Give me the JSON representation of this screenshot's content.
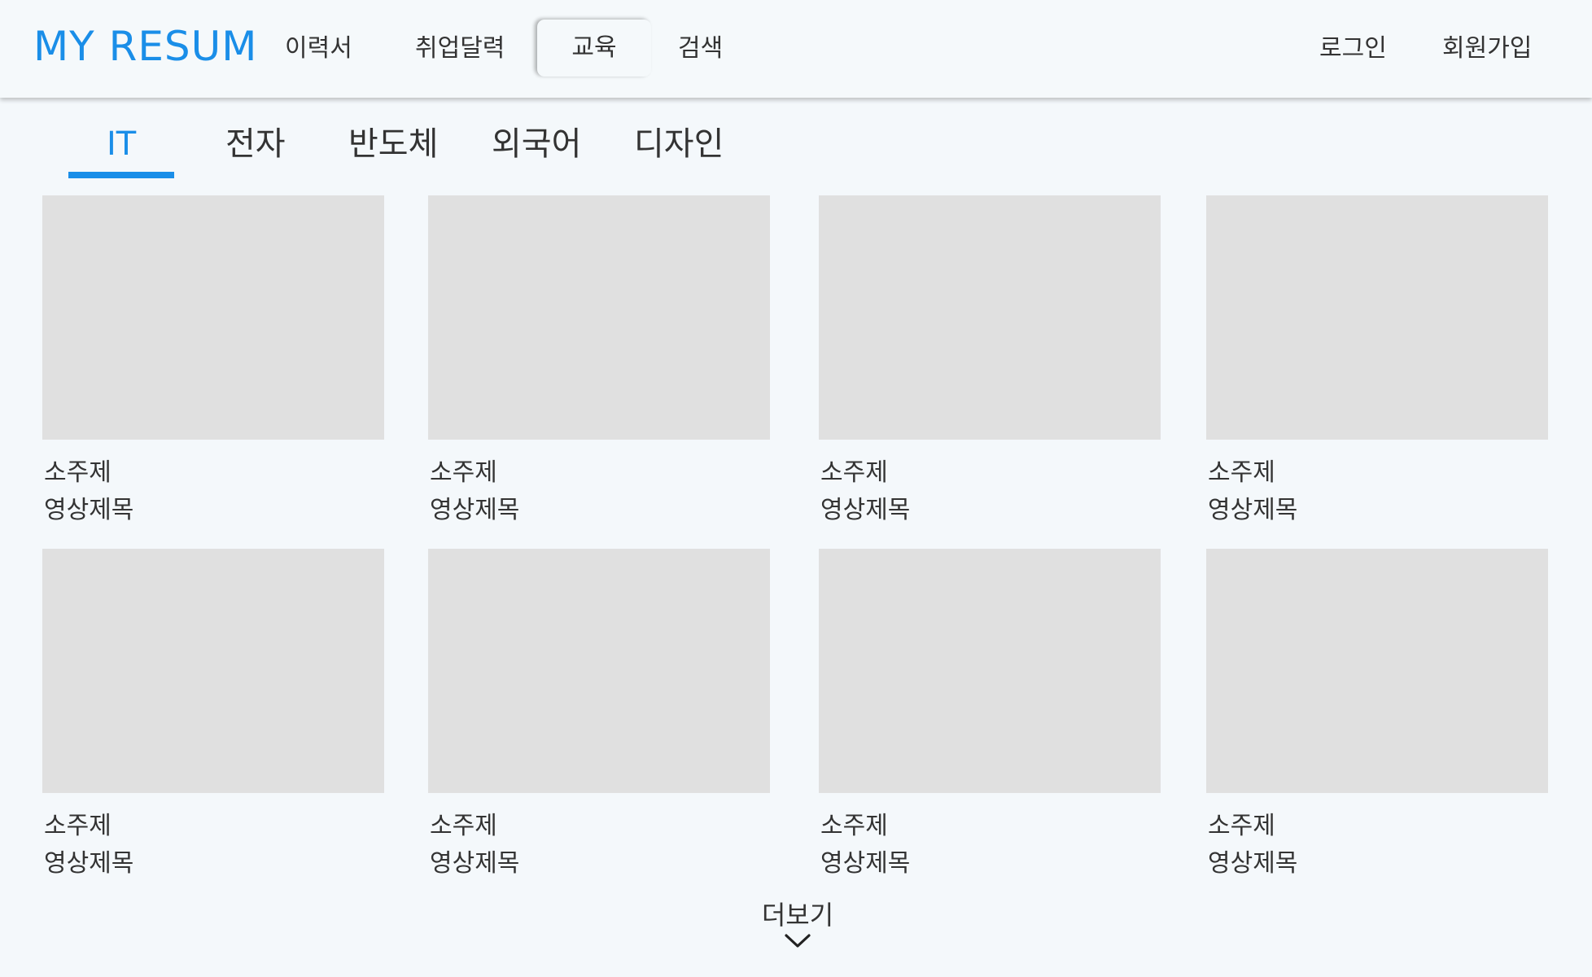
{
  "header": {
    "logo": "MY RESUM",
    "nav": [
      {
        "label": "이력서"
      },
      {
        "label": "취업달력"
      },
      {
        "label": "교육"
      },
      {
        "label": "검색"
      }
    ],
    "active_nav": "교육",
    "login_label": "로그인",
    "signup_label": "회원가입"
  },
  "categories": {
    "tabs": [
      {
        "label": "IT"
      },
      {
        "label": "전자"
      },
      {
        "label": "반도체"
      },
      {
        "label": "외국어"
      },
      {
        "label": "디자인"
      }
    ],
    "active_tab": "IT"
  },
  "videos": [
    {
      "subject": "소주제",
      "title": "영상제목"
    },
    {
      "subject": "소주제",
      "title": "영상제목"
    },
    {
      "subject": "소주제",
      "title": "영상제목"
    },
    {
      "subject": "소주제",
      "title": "영상제목"
    },
    {
      "subject": "소주제",
      "title": "영상제목"
    },
    {
      "subject": "소주제",
      "title": "영상제목"
    },
    {
      "subject": "소주제",
      "title": "영상제목"
    },
    {
      "subject": "소주제",
      "title": "영상제목"
    }
  ],
  "more": {
    "label": "더보기",
    "icon": "chevron-down-icon"
  },
  "colors": {
    "accent": "#1a8ee8",
    "background": "#f4f8fb",
    "thumbnail": "#e0e0e0"
  }
}
